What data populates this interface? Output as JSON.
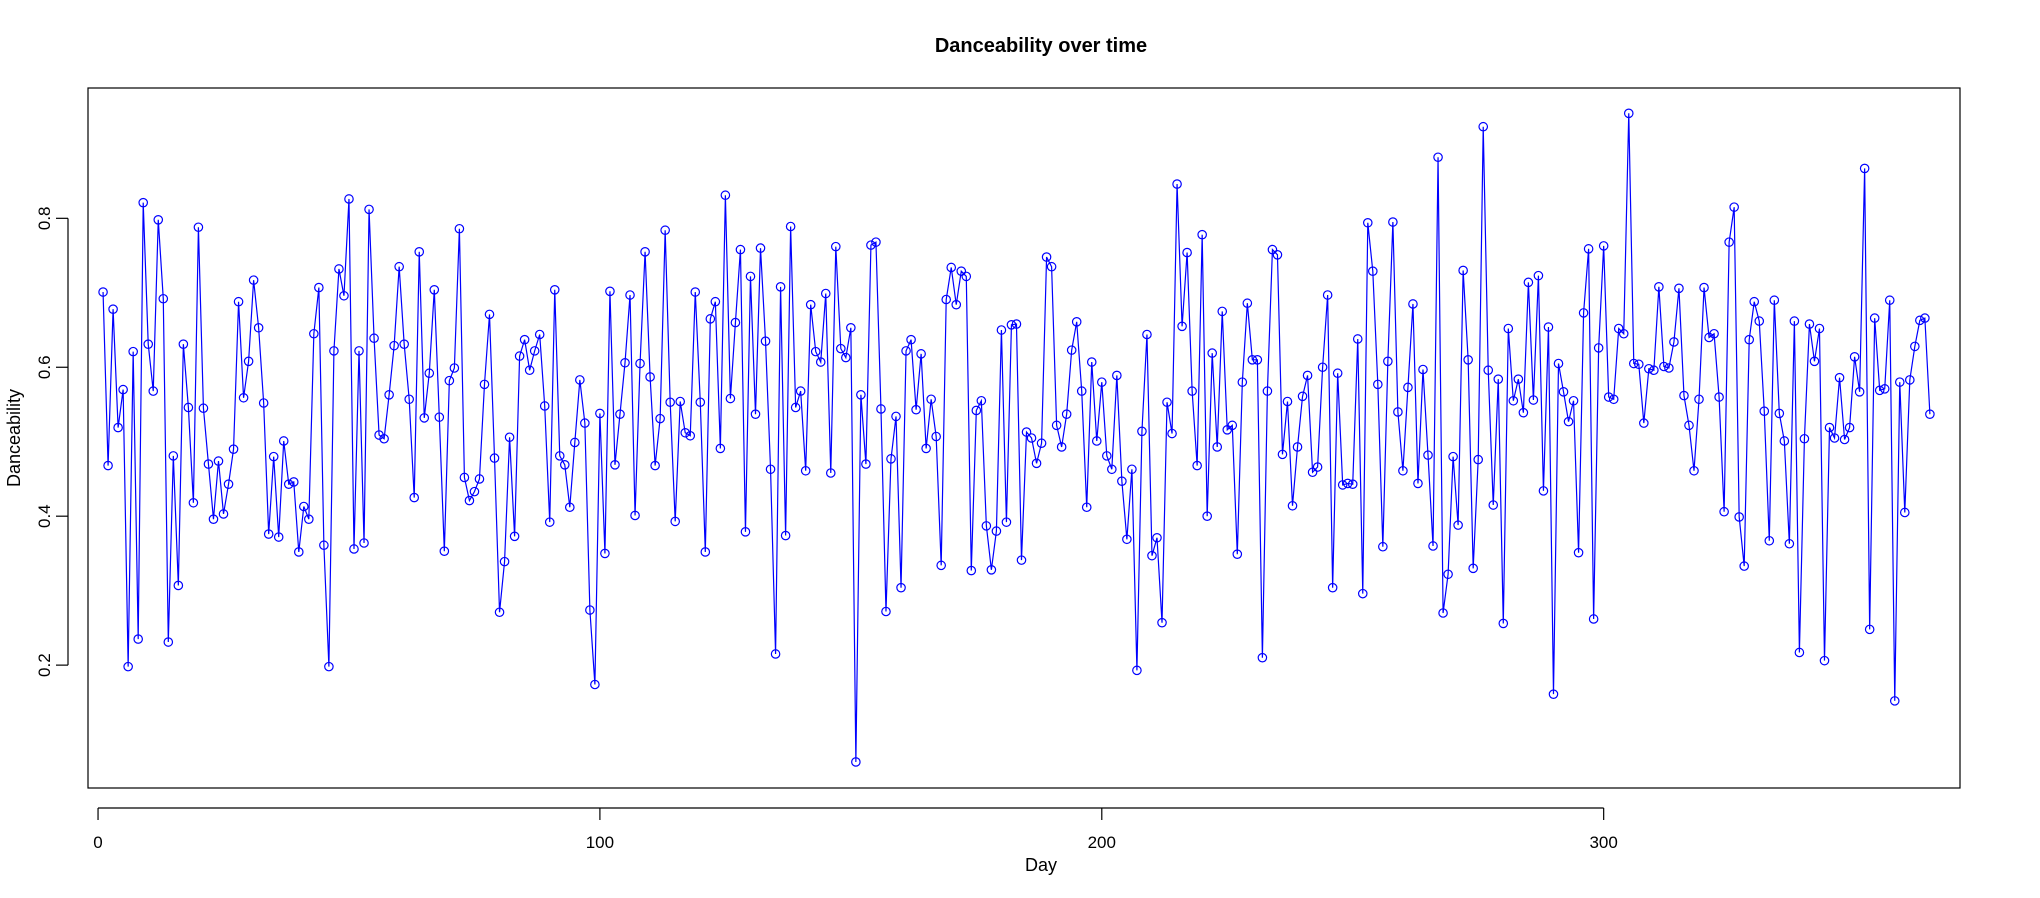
{
  "chart_data": {
    "type": "line",
    "title": "Danceability over time",
    "xlabel": "Day",
    "ylabel": "Danceability",
    "xlim": [
      -2,
      371
    ],
    "ylim": [
      0.035,
      0.975
    ],
    "x_ticks": [
      0,
      100,
      200,
      300
    ],
    "y_ticks": [
      0.2,
      0.4,
      0.6,
      0.8
    ],
    "line_color": "#0000ff",
    "marker": "open-circle",
    "grid": false,
    "x": [
      1,
      2,
      3,
      4,
      5,
      6,
      7,
      8,
      9,
      10,
      11,
      12,
      13,
      14,
      15,
      16,
      17,
      18,
      19,
      20,
      21,
      22,
      23,
      24,
      25,
      26,
      27,
      28,
      29,
      30,
      31,
      32,
      33,
      34,
      35,
      36,
      37,
      38,
      39,
      40,
      41,
      42,
      43,
      44,
      45,
      46,
      47,
      48,
      49,
      50,
      51,
      52,
      53,
      54,
      55,
      56,
      57,
      58,
      59,
      60,
      61,
      62,
      63,
      64,
      65,
      66,
      67,
      68,
      69,
      70,
      71,
      72,
      73,
      74,
      75,
      76,
      77,
      78,
      79,
      80,
      81,
      82,
      83,
      84,
      85,
      86,
      87,
      88,
      89,
      90,
      91,
      92,
      93,
      94,
      95,
      96,
      97,
      98,
      99,
      100,
      101,
      102,
      103,
      104,
      105,
      106,
      107,
      108,
      109,
      110,
      111,
      112,
      113,
      114,
      115,
      116,
      117,
      118,
      119,
      120,
      121,
      122,
      123,
      124,
      125,
      126,
      127,
      128,
      129,
      130,
      131,
      132,
      133,
      134,
      135,
      136,
      137,
      138,
      139,
      140,
      141,
      142,
      143,
      144,
      145,
      146,
      147,
      148,
      149,
      150,
      151,
      152,
      153,
      154,
      155,
      156,
      157,
      158,
      159,
      160,
      161,
      162,
      163,
      164,
      165,
      166,
      167,
      168,
      169,
      170,
      171,
      172,
      173,
      174,
      175,
      176,
      177,
      178,
      179,
      180,
      181,
      182,
      183,
      184,
      185,
      186,
      187,
      188,
      189,
      190,
      191,
      192,
      193,
      194,
      195,
      196,
      197,
      198,
      199,
      200,
      201,
      202,
      203,
      204,
      205,
      206,
      207,
      208,
      209,
      210,
      211,
      212,
      213,
      214,
      215,
      216,
      217,
      218,
      219,
      220,
      221,
      222,
      223,
      224,
      225,
      226,
      227,
      228,
      229,
      230,
      231,
      232,
      233,
      234,
      235,
      236,
      237,
      238,
      239,
      240,
      241,
      242,
      243,
      244,
      245,
      246,
      247,
      248,
      249,
      250,
      251,
      252,
      253,
      254,
      255,
      256,
      257,
      258,
      259,
      260,
      261,
      262,
      263,
      264,
      265,
      266,
      267,
      268,
      269,
      270,
      271,
      272,
      273,
      274,
      275,
      276,
      277,
      278,
      279,
      280,
      281,
      282,
      283,
      284,
      285,
      286,
      287,
      288,
      289,
      290,
      291,
      292,
      293,
      294,
      295,
      296,
      297,
      298,
      299,
      300,
      301,
      302,
      303,
      304,
      305,
      306,
      307,
      308,
      309,
      310,
      311,
      312,
      313,
      314,
      315,
      316,
      317,
      318,
      319,
      320,
      321,
      322,
      323,
      324,
      325,
      326,
      327,
      328,
      329,
      330,
      331,
      332,
      333,
      334,
      335,
      336,
      337,
      338,
      339,
      340,
      341,
      342,
      343,
      344,
      345,
      346,
      347,
      348,
      349,
      350,
      351,
      352,
      353,
      354,
      355,
      356,
      357,
      358,
      359,
      360,
      361,
      362,
      363,
      364,
      365
    ],
    "values": [
      0.701,
      0.468,
      0.678,
      0.519,
      0.57,
      0.198,
      0.621,
      0.235,
      0.821,
      0.631,
      0.568,
      0.798,
      0.692,
      0.231,
      0.481,
      0.307,
      0.631,
      0.546,
      0.418,
      0.788,
      0.545,
      0.47,
      0.396,
      0.474,
      0.403,
      0.443,
      0.49,
      0.688,
      0.559,
      0.608,
      0.717,
      0.653,
      0.552,
      0.376,
      0.48,
      0.372,
      0.501,
      0.443,
      0.446,
      0.352,
      0.413,
      0.396,
      0.645,
      0.707,
      0.361,
      0.198,
      0.622,
      0.732,
      0.696,
      0.826,
      0.356,
      0.622,
      0.364,
      0.812,
      0.639,
      0.509,
      0.504,
      0.563,
      0.629,
      0.735,
      0.631,
      0.557,
      0.425,
      0.755,
      0.532,
      0.592,
      0.704,
      0.533,
      0.353,
      0.582,
      0.599,
      0.786,
      0.452,
      0.421,
      0.433,
      0.45,
      0.577,
      0.671,
      0.478,
      0.271,
      0.339,
      0.506,
      0.373,
      0.615,
      0.637,
      0.596,
      0.622,
      0.644,
      0.548,
      0.392,
      0.704,
      0.481,
      0.469,
      0.412,
      0.499,
      0.583,
      0.525,
      0.274,
      0.174,
      0.538,
      0.35,
      0.702,
      0.469,
      0.537,
      0.606,
      0.697,
      0.401,
      0.605,
      0.755,
      0.587,
      0.468,
      0.531,
      0.784,
      0.553,
      0.393,
      0.554,
      0.512,
      0.508,
      0.701,
      0.553,
      0.352,
      0.665,
      0.688,
      0.491,
      0.831,
      0.558,
      0.66,
      0.758,
      0.379,
      0.722,
      0.537,
      0.76,
      0.635,
      0.463,
      0.215,
      0.708,
      0.374,
      0.789,
      0.546,
      0.568,
      0.461,
      0.684,
      0.621,
      0.607,
      0.699,
      0.458,
      0.762,
      0.625,
      0.613,
      0.653,
      0.07,
      0.563,
      0.47,
      0.764,
      0.768,
      0.544,
      0.272,
      0.477,
      0.534,
      0.304,
      0.622,
      0.637,
      0.543,
      0.618,
      0.491,
      0.557,
      0.507,
      0.334,
      0.691,
      0.734,
      0.684,
      0.729,
      0.722,
      0.327,
      0.542,
      0.555,
      0.387,
      0.328,
      0.38,
      0.65,
      0.392,
      0.657,
      0.658,
      0.341,
      0.513,
      0.505,
      0.471,
      0.498,
      0.748,
      0.735,
      0.522,
      0.493,
      0.537,
      0.623,
      0.661,
      0.568,
      0.412,
      0.607,
      0.501,
      0.58,
      0.481,
      0.463,
      0.589,
      0.447,
      0.369,
      0.463,
      0.193,
      0.514,
      0.644,
      0.347,
      0.371,
      0.257,
      0.553,
      0.511,
      0.846,
      0.655,
      0.754,
      0.568,
      0.468,
      0.778,
      0.4,
      0.619,
      0.493,
      0.675,
      0.516,
      0.522,
      0.349,
      0.58,
      0.686,
      0.61,
      0.61,
      0.21,
      0.568,
      0.758,
      0.751,
      0.483,
      0.554,
      0.414,
      0.493,
      0.561,
      0.589,
      0.459,
      0.466,
      0.6,
      0.697,
      0.304,
      0.592,
      0.442,
      0.444,
      0.443,
      0.638,
      0.296,
      0.794,
      0.729,
      0.577,
      0.359,
      0.608,
      0.795,
      0.54,
      0.461,
      0.573,
      0.685,
      0.444,
      0.597,
      0.482,
      0.36,
      0.882,
      0.27,
      0.322,
      0.48,
      0.388,
      0.73,
      0.61,
      0.33,
      0.476,
      0.923,
      0.596,
      0.415,
      0.584,
      0.256,
      0.652,
      0.555,
      0.584,
      0.539,
      0.714,
      0.556,
      0.723,
      0.434,
      0.654,
      0.161,
      0.605,
      0.567,
      0.527,
      0.555,
      0.351,
      0.673,
      0.759,
      0.262,
      0.626,
      0.763,
      0.56,
      0.557,
      0.652,
      0.645,
      0.941,
      0.605,
      0.604,
      0.525,
      0.598,
      0.596,
      0.708,
      0.601,
      0.599,
      0.634,
      0.706,
      0.562,
      0.522,
      0.461,
      0.557,
      0.707,
      0.64,
      0.645,
      0.56,
      0.406,
      0.768,
      0.815,
      0.399,
      0.333,
      0.637,
      0.688,
      0.662,
      0.541,
      0.367,
      0.69,
      0.538,
      0.501,
      0.363,
      0.662,
      0.217,
      0.504,
      0.658,
      0.608,
      0.652,
      0.206,
      0.519,
      0.505,
      0.586,
      0.503,
      0.519,
      0.614,
      0.567,
      0.867,
      0.248,
      0.666,
      0.569,
      0.571,
      0.69,
      0.152,
      0.58,
      0.405,
      0.583,
      0.628,
      0.663,
      0.666,
      0.537
    ]
  }
}
